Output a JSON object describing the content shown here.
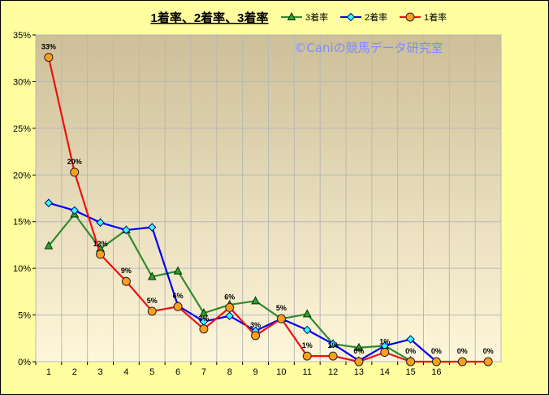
{
  "chart_data": {
    "type": "line",
    "title": "1着率、2着率、3着率",
    "xlabel": "",
    "ylabel": "",
    "categories": [
      "1",
      "2",
      "3",
      "4",
      "5",
      "6",
      "7",
      "8",
      "9",
      "10",
      "11",
      "12",
      "13",
      "14",
      "15",
      "16",
      "",
      ""
    ],
    "ylim": [
      0,
      35
    ],
    "yticks": [
      "0%",
      "5%",
      "10%",
      "15%",
      "20%",
      "25%",
      "30%",
      "35%"
    ],
    "grid": true,
    "legend_position": "top",
    "watermark": "©Caniの競馬データ研究室",
    "series": [
      {
        "name": "3着率",
        "color": "#2e8b2e",
        "marker": "triangle",
        "values": [
          12.4,
          15.8,
          12.1,
          14.1,
          9.1,
          9.7,
          5.2,
          6.1,
          6.5,
          4.6,
          5.1,
          1.9,
          1.5,
          1.7,
          0.1,
          null,
          null,
          null
        ]
      },
      {
        "name": "2着率",
        "color": "#0000ee",
        "marker": "diamond",
        "values": [
          17.0,
          16.2,
          14.9,
          14.1,
          14.4,
          6.0,
          4.3,
          4.9,
          3.3,
          4.6,
          3.4,
          1.9,
          0.1,
          1.7,
          2.4,
          0.0,
          null,
          null
        ]
      },
      {
        "name": "1着率",
        "color": "#ee1111",
        "marker": "circle",
        "values": [
          32.6,
          20.3,
          11.5,
          8.6,
          5.4,
          5.9,
          3.5,
          5.8,
          2.8,
          4.6,
          0.6,
          0.6,
          0.0,
          1.0,
          0.0,
          0.0,
          0.0,
          0.0
        ],
        "data_labels": [
          "33%",
          "20%",
          "12%",
          "9%",
          "5%",
          "6%",
          "3%",
          "6%",
          "3%",
          "5%",
          "1%",
          "1%",
          "0%",
          "1%",
          "0%",
          "0%",
          "0%",
          "0%"
        ]
      }
    ]
  }
}
